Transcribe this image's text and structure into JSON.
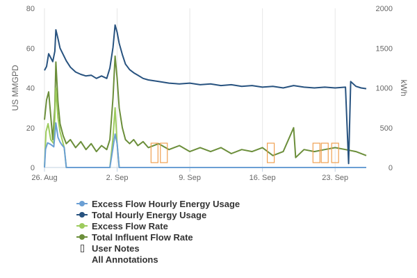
{
  "chart_data": {
    "type": "line",
    "x_ticks": [
      "26. Aug",
      "2. Sep",
      "9. Sep",
      "16. Sep",
      "23. Sep"
    ],
    "x_tick_days": [
      0,
      7,
      14,
      21,
      28
    ],
    "x_range_days": [
      0,
      31
    ],
    "y_left": {
      "label": "US MMGPD",
      "range": [
        0,
        80
      ],
      "ticks": [
        0,
        20,
        40,
        60,
        80
      ]
    },
    "y_right": {
      "label": "kWh",
      "range": [
        0,
        2000
      ],
      "ticks": [
        0,
        500,
        1000,
        1500,
        2000
      ]
    },
    "grid": {
      "vertical": true,
      "horizontal": false
    },
    "legend_placement": "bottom-left",
    "series": [
      {
        "name": "Excess Flow Hourly Energy Usage",
        "axis": "right",
        "color": "#6a9fd4",
        "points": [
          [
            0.0,
            0
          ],
          [
            0.1,
            230
          ],
          [
            0.3,
            310
          ],
          [
            0.6,
            290
          ],
          [
            0.9,
            260
          ],
          [
            1.1,
            560
          ],
          [
            1.3,
            380
          ],
          [
            1.5,
            320
          ],
          [
            1.7,
            280
          ],
          [
            1.9,
            250
          ],
          [
            2.1,
            0
          ],
          [
            6.3,
            0
          ],
          [
            6.6,
            250
          ],
          [
            6.8,
            420
          ],
          [
            7.0,
            300
          ],
          [
            7.2,
            0
          ],
          [
            31,
            0
          ]
        ]
      },
      {
        "name": "Total Hourly Energy Usage",
        "axis": "right",
        "color": "#27527f",
        "points": [
          [
            0.0,
            1220
          ],
          [
            0.2,
            1270
          ],
          [
            0.4,
            1430
          ],
          [
            0.6,
            1380
          ],
          [
            0.8,
            1330
          ],
          [
            1.0,
            1460
          ],
          [
            1.1,
            1730
          ],
          [
            1.3,
            1620
          ],
          [
            1.5,
            1500
          ],
          [
            1.8,
            1420
          ],
          [
            2.1,
            1340
          ],
          [
            2.5,
            1260
          ],
          [
            3.0,
            1200
          ],
          [
            3.5,
            1170
          ],
          [
            4.0,
            1150
          ],
          [
            4.5,
            1160
          ],
          [
            5.0,
            1120
          ],
          [
            5.5,
            1150
          ],
          [
            6.0,
            1120
          ],
          [
            6.3,
            1250
          ],
          [
            6.6,
            1510
          ],
          [
            6.8,
            1790
          ],
          [
            7.0,
            1700
          ],
          [
            7.2,
            1560
          ],
          [
            7.5,
            1420
          ],
          [
            7.8,
            1300
          ],
          [
            8.2,
            1230
          ],
          [
            8.6,
            1190
          ],
          [
            9.0,
            1160
          ],
          [
            9.5,
            1120
          ],
          [
            10,
            1100
          ],
          [
            11,
            1080
          ],
          [
            12,
            1060
          ],
          [
            13,
            1050
          ],
          [
            14,
            1060
          ],
          [
            15,
            1040
          ],
          [
            16,
            1050
          ],
          [
            17,
            1030
          ],
          [
            18,
            1040
          ],
          [
            19,
            1020
          ],
          [
            20,
            1030
          ],
          [
            21,
            1010
          ],
          [
            22,
            1020
          ],
          [
            23,
            1000
          ],
          [
            24,
            1030
          ],
          [
            25,
            1010
          ],
          [
            26,
            1000
          ],
          [
            27,
            1010
          ],
          [
            28,
            1000
          ],
          [
            29,
            1010
          ],
          [
            29.3,
            50
          ],
          [
            29.5,
            1080
          ],
          [
            30,
            1020
          ],
          [
            30.5,
            1000
          ],
          [
            31,
            990
          ]
        ]
      },
      {
        "name": "Excess Flow Rate",
        "axis": "left",
        "color": "#9dcb5d",
        "points": [
          [
            0.0,
            0
          ],
          [
            0.15,
            18
          ],
          [
            0.35,
            22
          ],
          [
            0.6,
            14
          ],
          [
            0.9,
            12
          ],
          [
            1.1,
            40
          ],
          [
            1.3,
            25
          ],
          [
            1.5,
            18
          ],
          [
            1.7,
            14
          ],
          [
            1.9,
            10
          ],
          [
            2.1,
            0
          ],
          [
            6.3,
            0
          ],
          [
            6.6,
            15
          ],
          [
            6.8,
            30
          ],
          [
            7.0,
            12
          ],
          [
            7.2,
            0
          ],
          [
            31,
            0
          ]
        ]
      },
      {
        "name": "Total Influent Flow Rate",
        "axis": "left",
        "color": "#6b8e3a",
        "points": [
          [
            0.0,
            24
          ],
          [
            0.2,
            34
          ],
          [
            0.4,
            38
          ],
          [
            0.6,
            26
          ],
          [
            0.8,
            14
          ],
          [
            1.0,
            30
          ],
          [
            1.1,
            53
          ],
          [
            1.3,
            33
          ],
          [
            1.5,
            22
          ],
          [
            1.8,
            16
          ],
          [
            2.1,
            12
          ],
          [
            2.5,
            14
          ],
          [
            3.0,
            10
          ],
          [
            3.5,
            13
          ],
          [
            4.0,
            9
          ],
          [
            4.5,
            12
          ],
          [
            5.0,
            8
          ],
          [
            5.5,
            11
          ],
          [
            6.0,
            9
          ],
          [
            6.3,
            14
          ],
          [
            6.6,
            35
          ],
          [
            6.8,
            56
          ],
          [
            7.0,
            45
          ],
          [
            7.2,
            30
          ],
          [
            7.5,
            20
          ],
          [
            7.8,
            14
          ],
          [
            8.2,
            12
          ],
          [
            8.6,
            14
          ],
          [
            9.0,
            11
          ],
          [
            9.5,
            13
          ],
          [
            10,
            10
          ],
          [
            11,
            12
          ],
          [
            12,
            9
          ],
          [
            13,
            11
          ],
          [
            14,
            8
          ],
          [
            15,
            10
          ],
          [
            16,
            8
          ],
          [
            17,
            10
          ],
          [
            18,
            7
          ],
          [
            19,
            9
          ],
          [
            20,
            8
          ],
          [
            21,
            10
          ],
          [
            22,
            6
          ],
          [
            23,
            8
          ],
          [
            24,
            20
          ],
          [
            24.2,
            5
          ],
          [
            25,
            9
          ],
          [
            26,
            8
          ],
          [
            27,
            9
          ],
          [
            28,
            10
          ],
          [
            29,
            9
          ],
          [
            30,
            8
          ],
          [
            31,
            6
          ]
        ]
      }
    ],
    "annotations_days": [
      10.6,
      11.5,
      21.8,
      26.2,
      27.0,
      28.0
    ],
    "legend": [
      {
        "label": "Excess Flow Hourly Energy Usage",
        "kind": "line",
        "color": "#6a9fd4"
      },
      {
        "label": "Total Hourly Energy Usage",
        "kind": "line",
        "color": "#27527f"
      },
      {
        "label": "Excess Flow Rate",
        "kind": "line",
        "color": "#9dcb5d"
      },
      {
        "label": "Total Influent Flow Rate",
        "kind": "line",
        "color": "#6b8e3a"
      },
      {
        "label": "User Notes",
        "kind": "flag",
        "color": ""
      },
      {
        "label": "All Annotations",
        "kind": "none",
        "color": ""
      }
    ],
    "annotation_color": "#f0a050"
  }
}
